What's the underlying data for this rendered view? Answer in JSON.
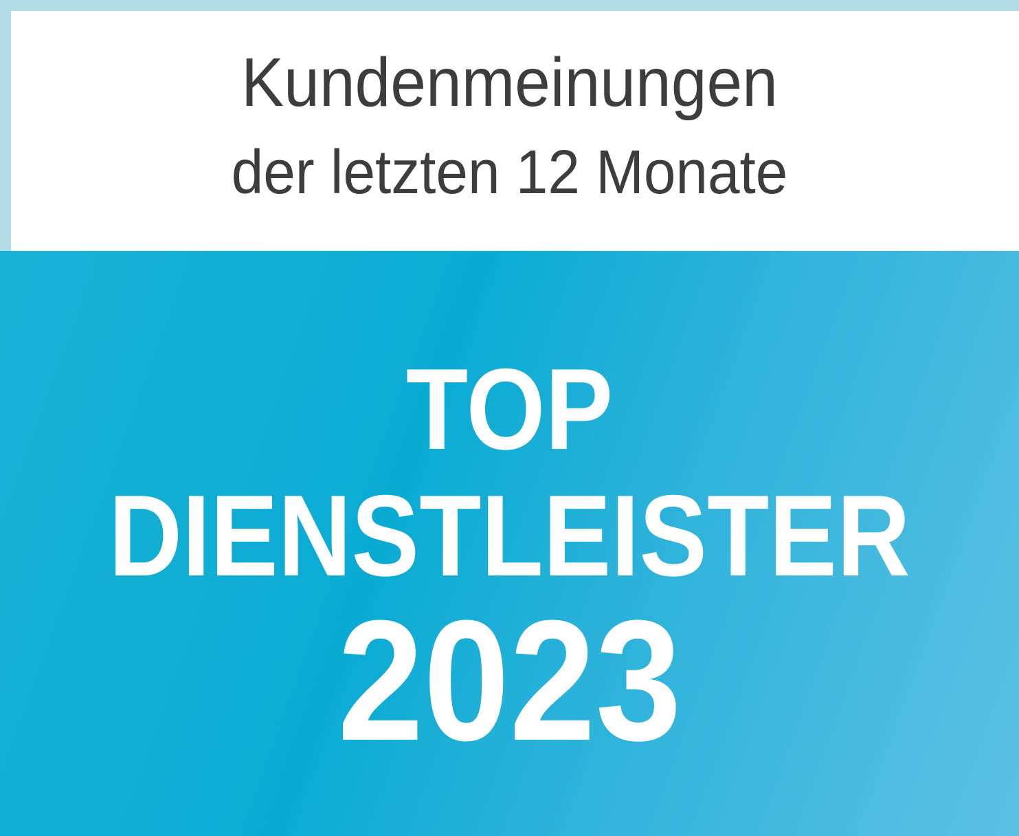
{
  "header": {
    "line1": "Kundenmeinungen",
    "line2": "der letzten 12 Monate"
  },
  "badge": {
    "line1": "TOP",
    "line2": "DIENSTLEISTER",
    "year": "2023"
  },
  "colors": {
    "frame": "#b1dce6",
    "panel": "#ffffff",
    "accent": "#0aabd3",
    "text_dark": "#3d3d3d"
  }
}
